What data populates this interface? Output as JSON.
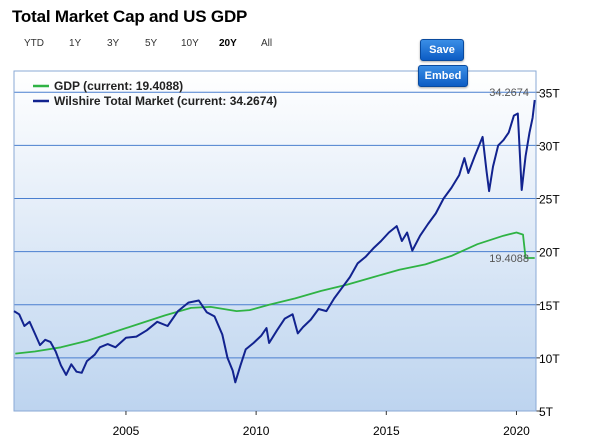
{
  "header": {
    "title": "Total Market Cap and US GDP"
  },
  "range_buttons": [
    {
      "label": "YTD",
      "active": false
    },
    {
      "label": "1Y",
      "active": false
    },
    {
      "label": "3Y",
      "active": false
    },
    {
      "label": "5Y",
      "active": false
    },
    {
      "label": "10Y",
      "active": false
    },
    {
      "label": "20Y",
      "active": true
    },
    {
      "label": "All",
      "active": false
    }
  ],
  "actions": {
    "save_label": "Save",
    "embed_label": "Embed"
  },
  "colors": {
    "gdp": "#2fb344",
    "wilshire": "#12238f",
    "grid": "#4a7fcf",
    "bg_top": "#ffffff",
    "bg_bottom": "#bdd4ef"
  },
  "chart_data": {
    "type": "line",
    "title": "Total Market Cap and US GDP",
    "xlabel": "",
    "ylabel": "",
    "xlim": [
      2000.7,
      2020.75
    ],
    "ylim": [
      5,
      37
    ],
    "x_ticks": [
      {
        "value": 2005,
        "label": "2005"
      },
      {
        "value": 2010,
        "label": "2010"
      },
      {
        "value": 2015,
        "label": "2015"
      },
      {
        "value": 2020,
        "label": "2020"
      }
    ],
    "y_ticks": [
      {
        "value": 5,
        "label": "5T"
      },
      {
        "value": 10,
        "label": "10T"
      },
      {
        "value": 15,
        "label": "15T"
      },
      {
        "value": 20,
        "label": "20T"
      },
      {
        "value": 25,
        "label": "25T"
      },
      {
        "value": 30,
        "label": "30T"
      },
      {
        "value": 35,
        "label": "35T"
      }
    ],
    "grid": true,
    "legend_position": "top-left",
    "series": [
      {
        "name": "GDP (current: 19.4088)",
        "current_label": "19.4088",
        "color": "#2fb344",
        "points": [
          [
            2000.75,
            10.4
          ],
          [
            2001.5,
            10.6
          ],
          [
            2002.5,
            11.0
          ],
          [
            2003.5,
            11.6
          ],
          [
            2004.5,
            12.4
          ],
          [
            2005.5,
            13.2
          ],
          [
            2006.5,
            14.0
          ],
          [
            2007.5,
            14.7
          ],
          [
            2008.25,
            14.8
          ],
          [
            2008.75,
            14.6
          ],
          [
            2009.25,
            14.4
          ],
          [
            2009.75,
            14.5
          ],
          [
            2010.5,
            15.0
          ],
          [
            2011.5,
            15.6
          ],
          [
            2012.5,
            16.3
          ],
          [
            2013.5,
            16.9
          ],
          [
            2014.5,
            17.6
          ],
          [
            2015.5,
            18.3
          ],
          [
            2016.5,
            18.8
          ],
          [
            2017.5,
            19.6
          ],
          [
            2018.5,
            20.7
          ],
          [
            2019.5,
            21.5
          ],
          [
            2020.0,
            21.8
          ],
          [
            2020.25,
            21.6
          ],
          [
            2020.35,
            19.4
          ],
          [
            2020.7,
            19.4
          ]
        ]
      },
      {
        "name": "Wilshire Total Market (current: 34.2674)",
        "current_label": "34.2674",
        "color": "#12238f",
        "points": [
          [
            2000.7,
            14.4
          ],
          [
            2000.9,
            14.1
          ],
          [
            2001.1,
            13.0
          ],
          [
            2001.3,
            13.4
          ],
          [
            2001.5,
            12.3
          ],
          [
            2001.7,
            11.2
          ],
          [
            2001.9,
            11.7
          ],
          [
            2002.1,
            11.5
          ],
          [
            2002.3,
            10.6
          ],
          [
            2002.5,
            9.3
          ],
          [
            2002.7,
            8.4
          ],
          [
            2002.9,
            9.4
          ],
          [
            2003.1,
            8.7
          ],
          [
            2003.3,
            8.6
          ],
          [
            2003.5,
            9.7
          ],
          [
            2003.8,
            10.3
          ],
          [
            2004.0,
            11.0
          ],
          [
            2004.3,
            11.3
          ],
          [
            2004.6,
            11.0
          ],
          [
            2005.0,
            11.9
          ],
          [
            2005.4,
            12.0
          ],
          [
            2005.8,
            12.6
          ],
          [
            2006.2,
            13.4
          ],
          [
            2006.6,
            13.0
          ],
          [
            2007.0,
            14.4
          ],
          [
            2007.4,
            15.2
          ],
          [
            2007.8,
            15.4
          ],
          [
            2008.1,
            14.3
          ],
          [
            2008.4,
            13.9
          ],
          [
            2008.7,
            12.2
          ],
          [
            2008.9,
            10.0
          ],
          [
            2009.1,
            8.8
          ],
          [
            2009.2,
            7.7
          ],
          [
            2009.4,
            9.3
          ],
          [
            2009.6,
            10.8
          ],
          [
            2009.9,
            11.4
          ],
          [
            2010.2,
            12.1
          ],
          [
            2010.4,
            12.8
          ],
          [
            2010.5,
            11.4
          ],
          [
            2010.8,
            12.6
          ],
          [
            2011.1,
            13.7
          ],
          [
            2011.4,
            14.1
          ],
          [
            2011.6,
            12.3
          ],
          [
            2011.8,
            12.9
          ],
          [
            2012.1,
            13.6
          ],
          [
            2012.4,
            14.6
          ],
          [
            2012.7,
            14.4
          ],
          [
            2013.0,
            15.6
          ],
          [
            2013.3,
            16.6
          ],
          [
            2013.6,
            17.6
          ],
          [
            2013.9,
            18.9
          ],
          [
            2014.2,
            19.5
          ],
          [
            2014.5,
            20.3
          ],
          [
            2014.8,
            21.0
          ],
          [
            2015.1,
            21.8
          ],
          [
            2015.4,
            22.4
          ],
          [
            2015.6,
            21.0
          ],
          [
            2015.8,
            21.8
          ],
          [
            2016.0,
            20.1
          ],
          [
            2016.3,
            21.5
          ],
          [
            2016.6,
            22.6
          ],
          [
            2016.9,
            23.6
          ],
          [
            2017.2,
            25.0
          ],
          [
            2017.5,
            26.0
          ],
          [
            2017.8,
            27.2
          ],
          [
            2018.0,
            28.8
          ],
          [
            2018.15,
            27.4
          ],
          [
            2018.4,
            29.0
          ],
          [
            2018.7,
            30.8
          ],
          [
            2018.85,
            27.6
          ],
          [
            2018.95,
            25.7
          ],
          [
            2019.1,
            28.0
          ],
          [
            2019.3,
            30.0
          ],
          [
            2019.5,
            30.5
          ],
          [
            2019.7,
            31.2
          ],
          [
            2019.9,
            32.8
          ],
          [
            2020.05,
            33.0
          ],
          [
            2020.2,
            25.8
          ],
          [
            2020.35,
            29.0
          ],
          [
            2020.5,
            31.2
          ],
          [
            2020.62,
            32.6
          ],
          [
            2020.7,
            34.27
          ]
        ]
      }
    ]
  }
}
